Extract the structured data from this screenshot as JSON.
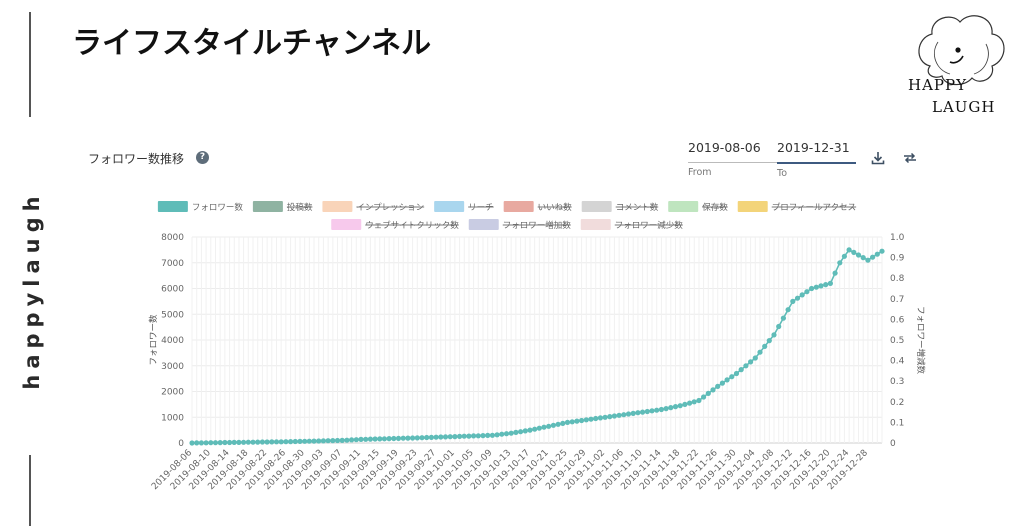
{
  "page": {
    "title": "ライフスタイルチャンネル",
    "side_brand": "happylaugh",
    "logo_line1": "HAPPY",
    "logo_line2": "LAUGH"
  },
  "panel": {
    "title": "フォロワー数推移",
    "help_icon": "question-circle-icon",
    "from_value": "2019-08-06",
    "from_label": "From",
    "to_value": "2019-12-31",
    "to_label": "To",
    "download_icon": "download-icon",
    "compare_icon": "swap-icon"
  },
  "chart_data": {
    "type": "line",
    "legend_placement": "top-center",
    "grid": true,
    "legend": [
      {
        "name": "フォロワー数",
        "color": "#5fbcb8",
        "active": true
      },
      {
        "name": "投稿数",
        "color": "#8fb3a2",
        "active": false
      },
      {
        "name": "インプレッション",
        "color": "#f9d4b9",
        "active": false
      },
      {
        "name": "リーチ",
        "color": "#a9d6ee",
        "active": false
      },
      {
        "name": "いいね数",
        "color": "#e8a9a0",
        "active": false
      },
      {
        "name": "コメント数",
        "color": "#d4d4d4",
        "active": false
      },
      {
        "name": "保存数",
        "color": "#bfe5bf",
        "active": false
      },
      {
        "name": "プロフィールアクセス",
        "color": "#f3d47a",
        "active": false
      },
      {
        "name": "ウェブサイトクリック数",
        "color": "#f7c9ec",
        "active": false
      },
      {
        "name": "フォロワー増加数",
        "color": "#c9cce3",
        "active": false
      },
      {
        "name": "フォロワー減少数",
        "color": "#f1dcdc",
        "active": false
      }
    ],
    "ylabel": "フォロワー数",
    "y2label": "フォロワー増減数",
    "ylim": [
      0,
      8000
    ],
    "yticks": [
      0,
      1000,
      2000,
      3000,
      4000,
      5000,
      6000,
      7000,
      8000
    ],
    "y2lim": [
      0,
      1
    ],
    "y2ticks": [
      "0",
      "0.1",
      "0.2",
      "0.3",
      "0.4",
      "0.5",
      "0.6",
      "0.7",
      "0.8",
      "0.9",
      "1.0"
    ],
    "x_start": "2019-08-06",
    "x_end": "2019-12-31",
    "xticks": [
      "2019-08-06",
      "2019-08-10",
      "2019-08-14",
      "2019-08-18",
      "2019-08-22",
      "2019-08-26",
      "2019-08-30",
      "2019-09-03",
      "2019-09-07",
      "2019-09-11",
      "2019-09-15",
      "2019-09-19",
      "2019-09-23",
      "2019-09-27",
      "2019-10-01",
      "2019-10-05",
      "2019-10-09",
      "2019-10-13",
      "2019-10-17",
      "2019-10-21",
      "2019-10-25",
      "2019-10-29",
      "2019-11-02",
      "2019-11-06",
      "2019-11-10",
      "2019-11-14",
      "2019-11-18",
      "2019-11-22",
      "2019-11-26",
      "2019-11-30",
      "2019-12-04",
      "2019-12-08",
      "2019-12-12",
      "2019-12-16",
      "2019-12-20",
      "2019-12-24",
      "2019-12-28"
    ],
    "series": [
      {
        "name": "フォロワー数",
        "color": "#5fbcb8",
        "points": [
          {
            "x": "2019-08-06",
            "y": 0
          },
          {
            "x": "2019-08-14",
            "y": 20
          },
          {
            "x": "2019-08-26",
            "y": 50
          },
          {
            "x": "2019-09-07",
            "y": 100
          },
          {
            "x": "2019-09-11",
            "y": 140
          },
          {
            "x": "2019-09-23",
            "y": 200
          },
          {
            "x": "2019-10-01",
            "y": 250
          },
          {
            "x": "2019-10-09",
            "y": 300
          },
          {
            "x": "2019-10-13",
            "y": 380
          },
          {
            "x": "2019-10-17",
            "y": 500
          },
          {
            "x": "2019-10-21",
            "y": 650
          },
          {
            "x": "2019-10-25",
            "y": 800
          },
          {
            "x": "2019-10-29",
            "y": 900
          },
          {
            "x": "2019-11-02",
            "y": 1000
          },
          {
            "x": "2019-11-06",
            "y": 1100
          },
          {
            "x": "2019-11-10",
            "y": 1200
          },
          {
            "x": "2019-11-14",
            "y": 1300
          },
          {
            "x": "2019-11-18",
            "y": 1450
          },
          {
            "x": "2019-11-22",
            "y": 1650
          },
          {
            "x": "2019-11-26",
            "y": 2200
          },
          {
            "x": "2019-11-30",
            "y": 2700
          },
          {
            "x": "2019-12-04",
            "y": 3300
          },
          {
            "x": "2019-12-08",
            "y": 4200
          },
          {
            "x": "2019-12-12",
            "y": 5500
          },
          {
            "x": "2019-12-16",
            "y": 6000
          },
          {
            "x": "2019-12-20",
            "y": 6200
          },
          {
            "x": "2019-12-22",
            "y": 7000
          },
          {
            "x": "2019-12-24",
            "y": 7500
          },
          {
            "x": "2019-12-28",
            "y": 7100
          },
          {
            "x": "2019-12-31",
            "y": 7450
          }
        ]
      }
    ]
  }
}
